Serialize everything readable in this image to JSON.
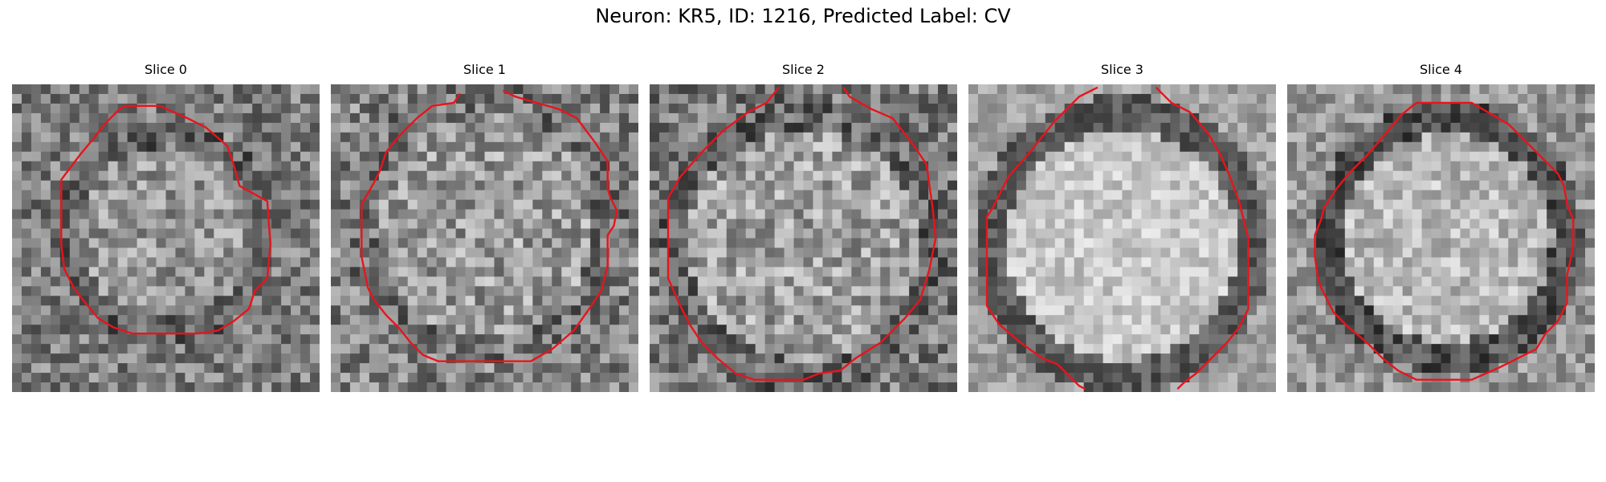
{
  "figure": {
    "title": "Neuron: KR5, ID: 1216, Predicted Label: CV"
  },
  "panels": [
    {
      "title": "Slice 0"
    },
    {
      "title": "Slice 1"
    },
    {
      "title": "Slice 2"
    },
    {
      "title": "Slice 3"
    },
    {
      "title": "Slice 4"
    }
  ],
  "colors": {
    "contour": "#e8141c",
    "background": "#ffffff"
  }
}
